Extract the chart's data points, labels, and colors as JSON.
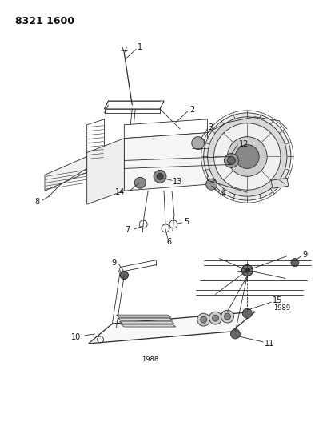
{
  "title_code": "8321 1600",
  "background_color": "#ffffff",
  "line_color": "#2a2a2a",
  "text_color": "#111111",
  "fig_width": 4.1,
  "fig_height": 5.33,
  "dpi": 100,
  "year_1988": "1988",
  "year_1989": "1989",
  "gray_fill": "#888888",
  "light_gray": "#cccccc",
  "mid_gray": "#aaaaaa"
}
